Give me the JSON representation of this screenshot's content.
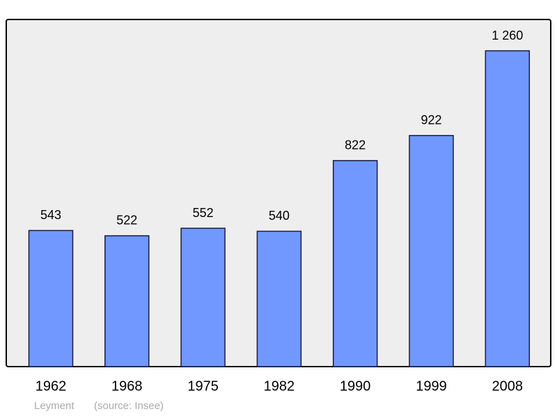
{
  "chart_data": {
    "type": "bar",
    "categories": [
      "1962",
      "1968",
      "1975",
      "1982",
      "1990",
      "1999",
      "2008"
    ],
    "values": [
      543,
      522,
      552,
      540,
      822,
      922,
      1260
    ],
    "value_labels": [
      "543",
      "522",
      "552",
      "540",
      "822",
      "922",
      "1 260"
    ],
    "color": "#7098ff",
    "ylim": [
      0,
      1385
    ],
    "place": "Leyment",
    "source": "(source: Insee)"
  }
}
